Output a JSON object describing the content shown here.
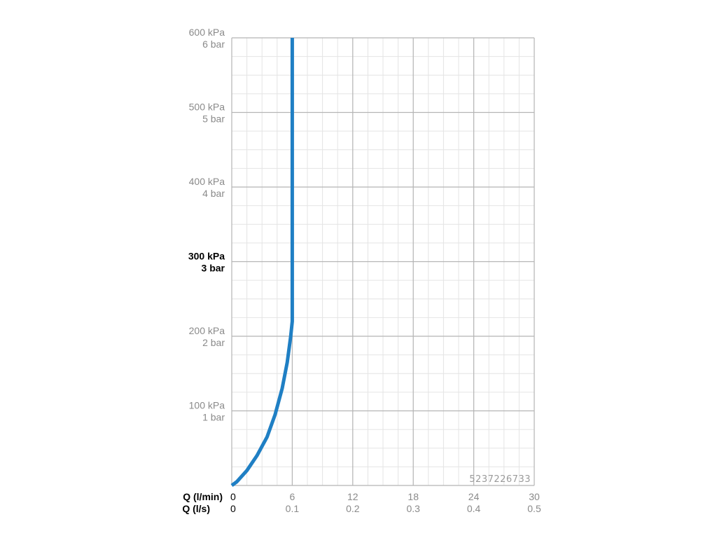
{
  "chart_data": {
    "type": "line",
    "title": "",
    "x_axis": {
      "primary_label": "Q (l/min)",
      "primary_ticks": [
        "0",
        "6",
        "12",
        "18",
        "24",
        "30"
      ],
      "secondary_label": "Q (l/s)",
      "secondary_ticks": [
        "0",
        "0.1",
        "0.2",
        "0.3",
        "0.4",
        "0.5"
      ],
      "xlim": [
        0,
        30
      ]
    },
    "y_axis": {
      "ticks": [
        {
          "value": 100,
          "kpa": "100 kPa",
          "bar": "1 bar",
          "bold": false
        },
        {
          "value": 200,
          "kpa": "200 kPa",
          "bar": "2 bar",
          "bold": false
        },
        {
          "value": 300,
          "kpa": "300 kPa",
          "bar": "3 bar",
          "bold": true
        },
        {
          "value": 400,
          "kpa": "400 kPa",
          "bar": "4 bar",
          "bold": false
        },
        {
          "value": 500,
          "kpa": "500 kPa",
          "bar": "5 bar",
          "bold": false
        },
        {
          "value": 600,
          "kpa": "600 kPa",
          "bar": "6 bar",
          "bold": false
        }
      ],
      "ylim": [
        0,
        600
      ],
      "unit": "kPa"
    },
    "grid": true,
    "series": [
      {
        "color": "#1f7fc4",
        "x": [
          0,
          0.5,
          1.5,
          2.5,
          3.5,
          4.3,
          5.0,
          5.5,
          5.85,
          6.0,
          6.0,
          6.0
        ],
        "y": [
          0,
          5,
          20,
          40,
          65,
          95,
          130,
          165,
          200,
          220,
          400,
          600
        ]
      }
    ],
    "annotation": "5237226733"
  }
}
